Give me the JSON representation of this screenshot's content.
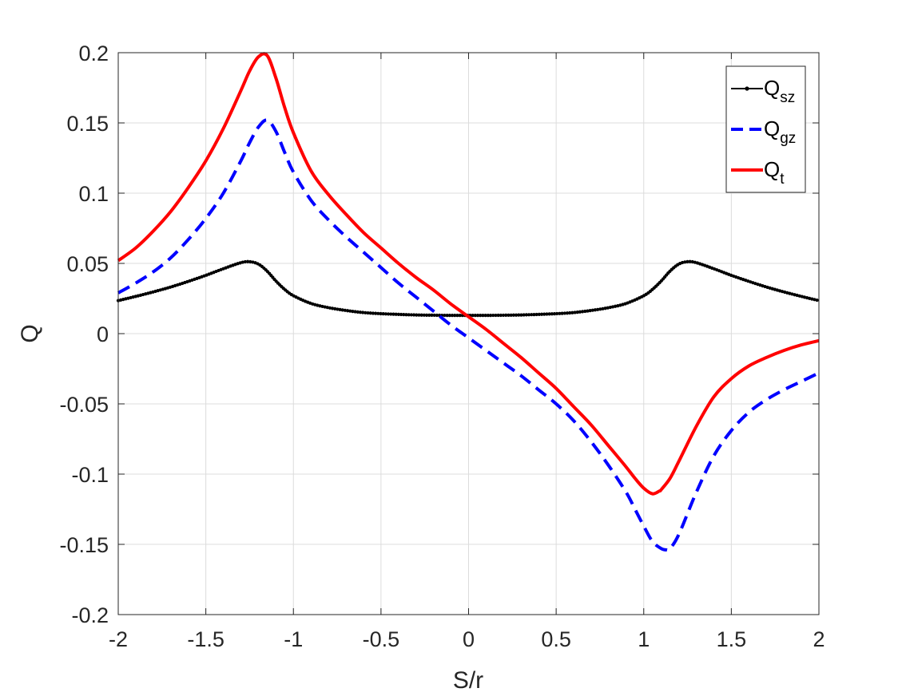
{
  "chart_data": {
    "type": "line",
    "title": "",
    "xlabel": "S/r",
    "ylabel": "Q",
    "xlim": [
      -2,
      2
    ],
    "ylim": [
      -0.2,
      0.2
    ],
    "grid": true,
    "legend_position": "top-right",
    "xticks": [
      {
        "value": -2,
        "label": "-2"
      },
      {
        "value": -1.5,
        "label": "-1.5"
      },
      {
        "value": -1,
        "label": "-1"
      },
      {
        "value": -0.5,
        "label": "-0.5"
      },
      {
        "value": 0,
        "label": "0"
      },
      {
        "value": 0.5,
        "label": "0.5"
      },
      {
        "value": 1,
        "label": "1"
      },
      {
        "value": 1.5,
        "label": "1.5"
      },
      {
        "value": 2,
        "label": "2"
      }
    ],
    "yticks": [
      {
        "value": 0.2,
        "label": "0.2"
      },
      {
        "value": 0.15,
        "label": "0.15"
      },
      {
        "value": 0.1,
        "label": "0.1"
      },
      {
        "value": 0.05,
        "label": "0.05"
      },
      {
        "value": 0,
        "label": "0"
      },
      {
        "value": -0.05,
        "label": "-0.05"
      },
      {
        "value": -0.1,
        "label": "-0.1"
      },
      {
        "value": -0.15,
        "label": "-0.15"
      },
      {
        "value": -0.2,
        "label": "-0.2"
      }
    ],
    "series": [
      {
        "name": "Q",
        "name_sub": "sz",
        "color": "#000000",
        "style": "solid-dots",
        "x": [
          -2.0,
          -1.9,
          -1.8,
          -1.7,
          -1.6,
          -1.5,
          -1.4,
          -1.3,
          -1.25,
          -1.2,
          -1.15,
          -1.1,
          -1.05,
          -1.0,
          -0.9,
          -0.8,
          -0.7,
          -0.6,
          -0.5,
          -0.4,
          -0.3,
          -0.2,
          -0.1,
          0.0,
          0.1,
          0.2,
          0.3,
          0.4,
          0.5,
          0.6,
          0.7,
          0.8,
          0.9,
          1.0,
          1.05,
          1.1,
          1.15,
          1.2,
          1.25,
          1.3,
          1.4,
          1.5,
          1.6,
          1.7,
          1.8,
          1.9,
          2.0
        ],
        "y": [
          0.0235,
          0.0265,
          0.0297,
          0.0332,
          0.0372,
          0.0415,
          0.0462,
          0.0505,
          0.0512,
          0.0495,
          0.0445,
          0.0375,
          0.0315,
          0.027,
          0.0215,
          0.0185,
          0.0165,
          0.015,
          0.0142,
          0.0137,
          0.0133,
          0.0131,
          0.013,
          0.013,
          0.013,
          0.0131,
          0.0133,
          0.0137,
          0.0142,
          0.015,
          0.0165,
          0.0185,
          0.0215,
          0.027,
          0.0315,
          0.0375,
          0.0445,
          0.0495,
          0.0512,
          0.0505,
          0.0462,
          0.0415,
          0.0372,
          0.0332,
          0.0297,
          0.0265,
          0.0235
        ]
      },
      {
        "name": "Q",
        "name_sub": "gz",
        "color": "#0000ff",
        "style": "dashed",
        "x": [
          -2.0,
          -1.9,
          -1.8,
          -1.7,
          -1.6,
          -1.5,
          -1.4,
          -1.3,
          -1.25,
          -1.2,
          -1.15,
          -1.1,
          -1.05,
          -1.0,
          -0.9,
          -0.8,
          -0.7,
          -0.6,
          -0.5,
          -0.4,
          -0.3,
          -0.2,
          -0.1,
          0.0,
          0.1,
          0.2,
          0.3,
          0.4,
          0.5,
          0.6,
          0.7,
          0.8,
          0.9,
          0.95,
          1.0,
          1.05,
          1.1,
          1.13,
          1.15,
          1.2,
          1.3,
          1.4,
          1.5,
          1.6,
          1.7,
          1.8,
          1.9,
          2.0
        ],
        "y": [
          0.029,
          0.036,
          0.044,
          0.054,
          0.067,
          0.082,
          0.1,
          0.123,
          0.136,
          0.147,
          0.152,
          0.144,
          0.129,
          0.115,
          0.095,
          0.081,
          0.069,
          0.058,
          0.047,
          0.036,
          0.026,
          0.016,
          0.006,
          -0.003,
          -0.012,
          -0.021,
          -0.03,
          -0.04,
          -0.05,
          -0.062,
          -0.077,
          -0.094,
          -0.113,
          -0.125,
          -0.137,
          -0.148,
          -0.153,
          -0.154,
          -0.153,
          -0.143,
          -0.113,
          -0.087,
          -0.069,
          -0.056,
          -0.047,
          -0.04,
          -0.034,
          -0.028
        ]
      },
      {
        "name": "Q",
        "name_sub": "t",
        "color": "#ff0000",
        "style": "solid",
        "x": [
          -2.0,
          -1.9,
          -1.8,
          -1.7,
          -1.6,
          -1.5,
          -1.4,
          -1.3,
          -1.25,
          -1.2,
          -1.15,
          -1.1,
          -1.05,
          -1.0,
          -0.9,
          -0.8,
          -0.7,
          -0.6,
          -0.5,
          -0.4,
          -0.3,
          -0.2,
          -0.1,
          0.0,
          0.1,
          0.2,
          0.3,
          0.4,
          0.5,
          0.6,
          0.7,
          0.8,
          0.9,
          0.95,
          1.0,
          1.05,
          1.09,
          1.1,
          1.15,
          1.2,
          1.3,
          1.4,
          1.5,
          1.6,
          1.7,
          1.8,
          1.9,
          2.0
        ],
        "y": [
          0.052,
          0.061,
          0.073,
          0.087,
          0.104,
          0.123,
          0.146,
          0.173,
          0.187,
          0.197,
          0.198,
          0.182,
          0.161,
          0.143,
          0.116,
          0.099,
          0.085,
          0.072,
          0.061,
          0.05,
          0.04,
          0.031,
          0.021,
          0.012,
          0.003,
          -0.007,
          -0.017,
          -0.028,
          -0.039,
          -0.052,
          -0.065,
          -0.08,
          -0.095,
          -0.103,
          -0.11,
          -0.114,
          -0.112,
          -0.111,
          -0.103,
          -0.091,
          -0.066,
          -0.045,
          -0.032,
          -0.023,
          -0.017,
          -0.012,
          -0.008,
          -0.005
        ]
      }
    ]
  }
}
